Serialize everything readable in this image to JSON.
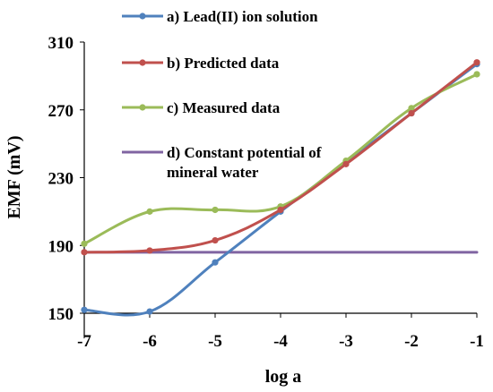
{
  "chart_data": {
    "type": "line",
    "title": "",
    "xlabel": "log a",
    "ylabel": "EMF (mV)",
    "x": [
      -7,
      -6,
      -5,
      -4,
      -3,
      -2,
      -1
    ],
    "xlim": [
      -7,
      -1
    ],
    "ylim": [
      150,
      310
    ],
    "xticks": [
      "-7",
      "-6",
      "-5",
      "-4",
      "-3",
      "-2",
      "-1"
    ],
    "yticks": [
      "150",
      "190",
      "230",
      "270",
      "310"
    ],
    "grid": false,
    "legend_position": "top-center",
    "smooth": true,
    "series": [
      {
        "name": "a) Lead(II) ion solution",
        "color": "#4f81bd",
        "markers": true,
        "values": [
          152,
          151,
          180,
          210,
          239,
          268,
          297
        ]
      },
      {
        "name": "b) Predicted data",
        "color": "#c0504d",
        "markers": true,
        "values": [
          186,
          187,
          193,
          211,
          238,
          268,
          298
        ]
      },
      {
        "name": "c) Measured data",
        "color": "#9bbb59",
        "markers": true,
        "values": [
          191,
          210,
          211,
          213,
          240,
          271,
          291
        ]
      },
      {
        "name": "d) Constant potential of mineral water",
        "legend_lines": [
          "d) Constant potential of",
          "mineral water"
        ],
        "color": "#8064a2",
        "markers": false,
        "values": [
          186,
          186,
          186,
          186,
          186,
          186,
          186
        ]
      }
    ]
  }
}
